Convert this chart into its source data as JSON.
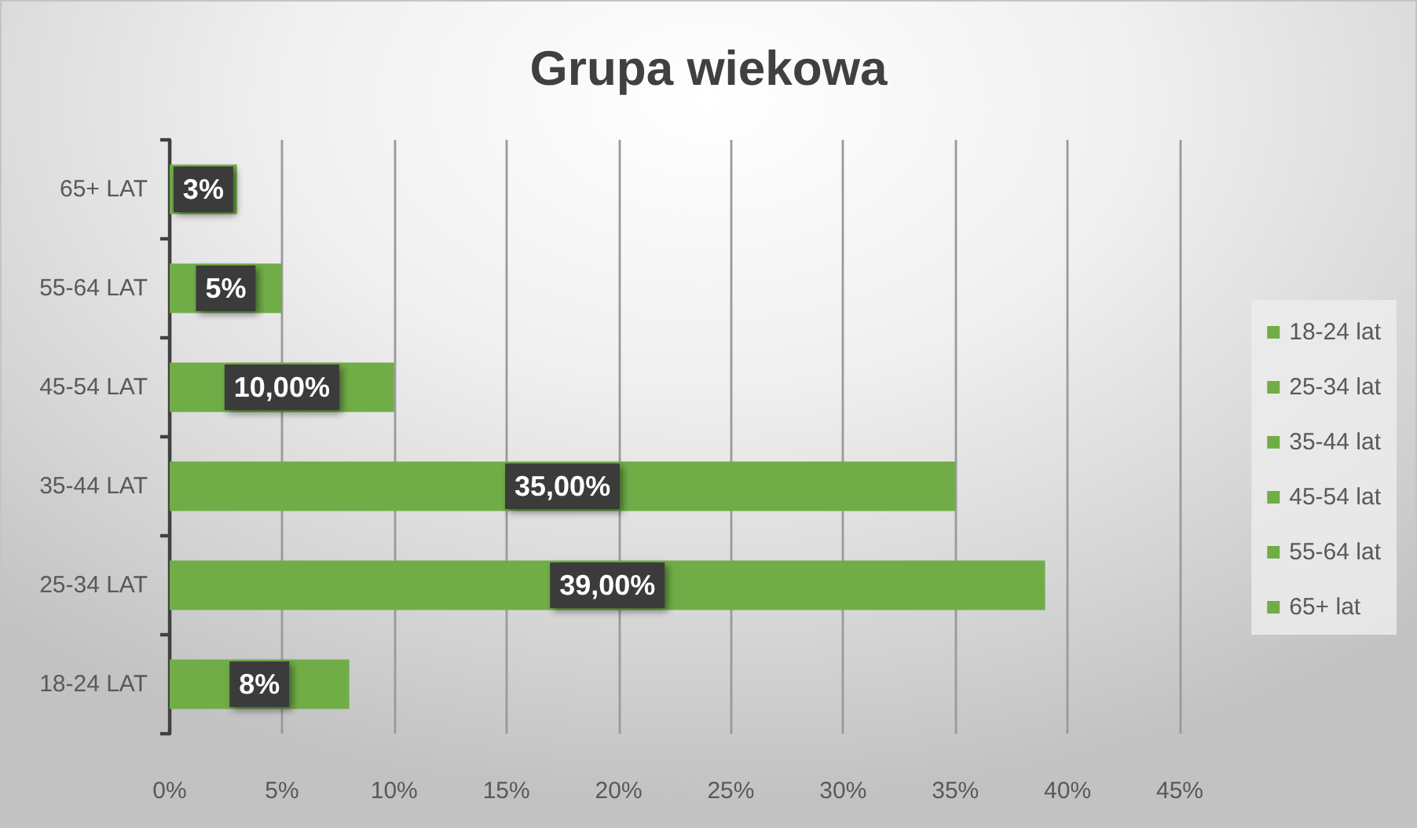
{
  "chart_data": {
    "type": "bar",
    "title": "Grupa wiekowa",
    "orientation": "horizontal",
    "stacked": true,
    "categories": [
      "65+ LAT",
      "55-64 LAT",
      "45-54 LAT",
      "35-44 LAT",
      "25-34 LAT",
      "18-24 LAT"
    ],
    "series": [
      {
        "name": "18-24 lat",
        "color": "#70ad47",
        "values": [
          null,
          null,
          null,
          null,
          null,
          8
        ],
        "value_labels": [
          null,
          null,
          null,
          null,
          null,
          "8%"
        ]
      },
      {
        "name": "25-34 lat",
        "color": "#70ad47",
        "values": [
          null,
          null,
          null,
          null,
          39,
          null
        ],
        "value_labels": [
          null,
          null,
          null,
          null,
          "39,00%",
          null
        ]
      },
      {
        "name": "35-44 lat",
        "color": "#70ad47",
        "values": [
          null,
          null,
          null,
          35,
          null,
          null
        ],
        "value_labels": [
          null,
          null,
          null,
          "35,00%",
          null,
          null
        ]
      },
      {
        "name": "45-54 lat",
        "color": "#70ad47",
        "values": [
          null,
          null,
          10,
          null,
          null,
          null
        ],
        "value_labels": [
          null,
          null,
          "10,00%",
          null,
          null,
          null
        ]
      },
      {
        "name": "55-64 lat",
        "color": "#70ad47",
        "values": [
          null,
          5,
          null,
          null,
          null,
          null
        ],
        "value_labels": [
          null,
          "5%",
          null,
          null,
          null,
          null
        ]
      },
      {
        "name": "65+ lat",
        "color": "#70ad47",
        "values": [
          3,
          null,
          null,
          null,
          null,
          null
        ],
        "value_labels": [
          "3%",
          null,
          null,
          null,
          null,
          null
        ]
      }
    ],
    "xlim": [
      0,
      45
    ],
    "xticks": [
      {
        "value": 0,
        "label": "0%"
      },
      {
        "value": 5,
        "label": "5%"
      },
      {
        "value": 10,
        "label": "10%"
      },
      {
        "value": 15,
        "label": "15%"
      },
      {
        "value": 20,
        "label": "20%"
      },
      {
        "value": 25,
        "label": "25%"
      },
      {
        "value": 30,
        "label": "30%"
      },
      {
        "value": 35,
        "label": "35%"
      },
      {
        "value": 40,
        "label": "40%"
      },
      {
        "value": 45,
        "label": "45%"
      }
    ],
    "grid": "x",
    "legend": "right"
  }
}
